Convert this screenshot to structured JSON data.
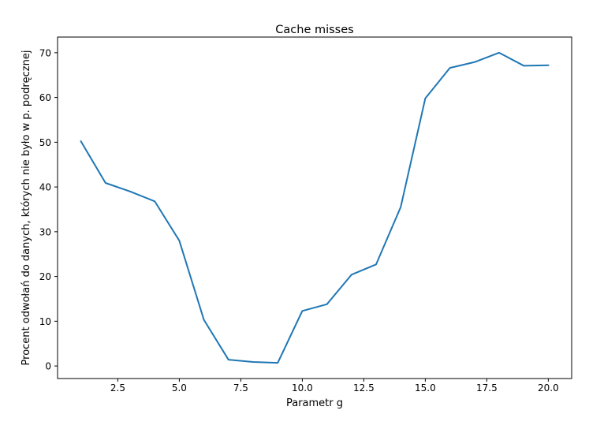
{
  "chart_data": {
    "type": "line",
    "title": "Cache misses",
    "xlabel": "Parametr g",
    "ylabel": "Procent odwołań do danych, których nie było w p. podręcznej",
    "xlim": [
      0.05,
      20.95
    ],
    "ylim": [
      -2.8,
      73.5
    ],
    "xticks": [
      2.5,
      5.0,
      7.5,
      10.0,
      12.5,
      15.0,
      17.5,
      20.0
    ],
    "xtick_labels": [
      "2.5",
      "5.0",
      "7.5",
      "10.0",
      "12.5",
      "15.0",
      "17.5",
      "20.0"
    ],
    "yticks": [
      0,
      10,
      20,
      30,
      40,
      50,
      60,
      70
    ],
    "ytick_labels": [
      "0",
      "10",
      "20",
      "30",
      "40",
      "50",
      "60",
      "70"
    ],
    "grid": false,
    "series": [
      {
        "color": "#1f77b4",
        "x": [
          1,
          2,
          3,
          4,
          5,
          6,
          7,
          8,
          9,
          10,
          11,
          12,
          13,
          14,
          15,
          16,
          17,
          18,
          19,
          20
        ],
        "y": [
          50.2,
          40.9,
          39.0,
          36.8,
          28.0,
          10.3,
          1.4,
          0.9,
          0.7,
          12.3,
          13.8,
          20.4,
          22.7,
          35.5,
          59.8,
          66.6,
          67.9,
          70.0,
          67.1,
          67.2
        ]
      }
    ]
  }
}
